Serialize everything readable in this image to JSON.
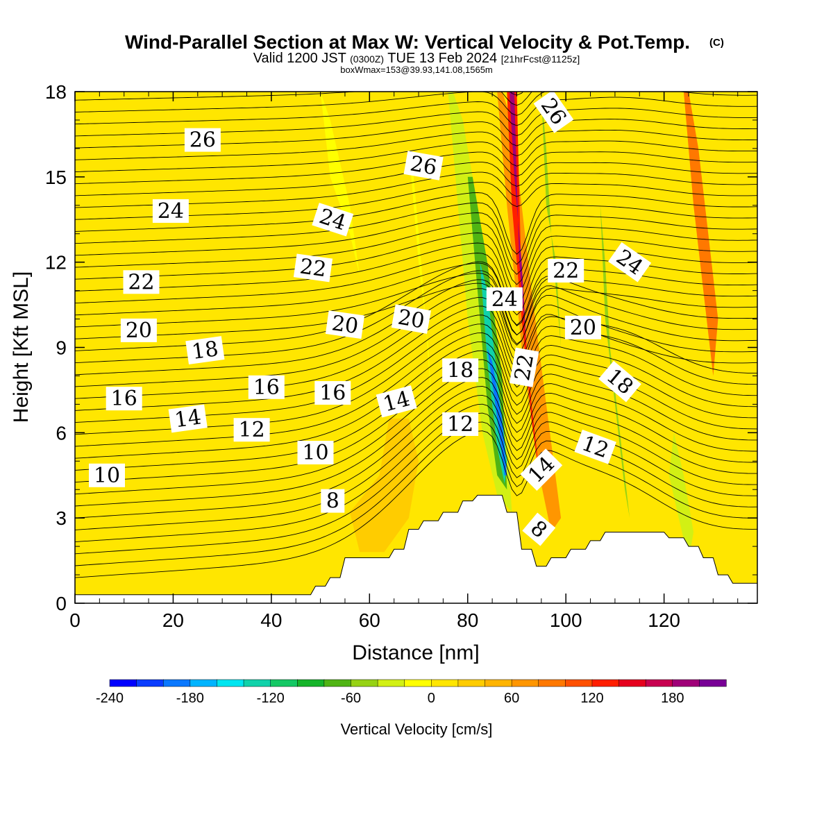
{
  "header": {
    "title": "Wind-Parallel Section at Max W: Vertical Velocity & Pot.Temp.",
    "copyright": "(C)",
    "valid_main_a": "Valid 1200 JST",
    "valid_utc": "(0300Z)",
    "valid_main_b": "TUE 13 Feb 2024",
    "forecast": "[21hrFcst@1125z]",
    "box": "boxWmax=153@39.93,141.08,1565m"
  },
  "chart_data": {
    "type": "heatmap",
    "title": "Wind-Parallel Section at Max W: Vertical Velocity & Pot.Temp.",
    "xlabel": "Distance [nm]",
    "ylabel": "Height [Kft MSL]",
    "xlim": [
      0,
      139
    ],
    "ylim": [
      0,
      18
    ],
    "x_ticks": [
      0,
      20,
      40,
      60,
      80,
      100,
      120
    ],
    "y_ticks": [
      0,
      3,
      6,
      9,
      12,
      15,
      18
    ],
    "colorbar": {
      "label": "Vertical Velocity [cm/s]",
      "min": -240,
      "max": 220,
      "step": 20,
      "ticks": [
        -240,
        -180,
        -120,
        -60,
        0,
        60,
        120,
        180
      ],
      "colors": [
        "#0000ff",
        "#0a3cff",
        "#0a78ff",
        "#00b4ff",
        "#00e6f0",
        "#10d2aa",
        "#14c864",
        "#16b42a",
        "#50b414",
        "#96d214",
        "#d2f014",
        "#ffff00",
        "#ffe600",
        "#ffcc00",
        "#ffb400",
        "#ff9600",
        "#ff7800",
        "#ff5000",
        "#ff1e00",
        "#e6001e",
        "#c80050",
        "#a00078",
        "#780096"
      ]
    },
    "terrain": {
      "x": [
        0,
        48,
        49,
        51,
        52,
        54,
        55,
        57,
        64,
        65,
        67,
        68,
        70,
        71,
        74,
        75,
        78,
        79,
        81,
        82,
        84,
        85,
        87,
        88,
        90,
        91,
        93,
        94,
        96,
        97,
        100,
        101,
        104,
        105,
        107,
        108,
        112,
        113,
        120,
        121,
        124,
        125,
        127,
        128,
        130,
        131,
        133,
        134,
        139
      ],
      "y": [
        0.3,
        0.3,
        0.6,
        0.6,
        0.9,
        0.9,
        1.6,
        1.6,
        1.6,
        1.9,
        1.9,
        2.6,
        2.6,
        2.9,
        2.9,
        3.2,
        3.2,
        3.6,
        3.6,
        3.8,
        3.8,
        3.8,
        3.8,
        3.2,
        3.2,
        1.9,
        1.9,
        1.3,
        1.3,
        1.6,
        1.6,
        1.9,
        1.9,
        2.2,
        2.2,
        2.5,
        2.5,
        2.5,
        2.5,
        2.3,
        2.3,
        2.0,
        2.0,
        1.6,
        1.6,
        1.0,
        1.0,
        0.7,
        0.7
      ]
    },
    "velocity_regions": [
      {
        "x": [
          62,
          56,
          58,
          63,
          68,
          70,
          68,
          64
        ],
        "y": [
          4.5,
          3.2,
          1.8,
          1.8,
          3.0,
          5.0,
          6.5,
          6.5
        ],
        "value": 30
      },
      {
        "x": [
          50,
          52,
          56,
          58,
          56,
          52
        ],
        "y": [
          18,
          15,
          13,
          11.5,
          14,
          17
        ],
        "value": -20
      },
      {
        "x": [
          68,
          70,
          72,
          73,
          71,
          69
        ],
        "y": [
          16,
          12,
          9,
          6,
          11,
          15
        ],
        "value": -20
      },
      {
        "x": [
          76,
          78,
          80,
          83,
          86,
          89,
          88,
          85,
          82,
          79,
          77
        ],
        "y": [
          18,
          14,
          10,
          6,
          3.8,
          3.2,
          6,
          10,
          14,
          17,
          18
        ],
        "value": -40
      },
      {
        "x": [
          80,
          82,
          84,
          86,
          88,
          87,
          84,
          81
        ],
        "y": [
          15,
          11,
          7,
          4.5,
          4,
          8,
          12,
          15
        ],
        "value": -80
      },
      {
        "x": [
          82.5,
          84,
          86,
          87.5,
          88,
          86,
          84
        ],
        "y": [
          12,
          8.5,
          5.5,
          4.2,
          5,
          8,
          11
        ],
        "value": -140
      },
      {
        "x": [
          84,
          86,
          87.5,
          88,
          87,
          85
        ],
        "y": [
          9,
          6.5,
          4.5,
          4.5,
          6.5,
          8.5
        ],
        "value": -200
      },
      {
        "x": [
          86,
          88,
          91,
          94,
          97,
          99,
          96,
          93,
          91,
          89,
          87
        ],
        "y": [
          18,
          14,
          9,
          5,
          2.5,
          3,
          7,
          11,
          14,
          17,
          18
        ],
        "value": 60
      },
      {
        "x": [
          88,
          89,
          91,
          93,
          95,
          93,
          91,
          90
        ],
        "y": [
          18,
          14,
          10,
          6.5,
          4,
          7,
          11,
          18
        ],
        "value": 120
      },
      {
        "x": [
          88.5,
          89.5,
          91,
          92,
          90.5,
          89.5
        ],
        "y": [
          18,
          15,
          12,
          9,
          12,
          18
        ],
        "value": 180
      },
      {
        "x": [
          95,
          96,
          98,
          99,
          97,
          96
        ],
        "y": [
          18,
          14,
          12,
          9,
          13,
          16
        ],
        "value": -60
      },
      {
        "x": [
          107,
          108,
          110,
          112,
          113,
          111,
          109,
          108
        ],
        "y": [
          14,
          10,
          7,
          4,
          3,
          6,
          9,
          12
        ],
        "value": -60
      },
      {
        "x": [
          121,
          123,
          125,
          126,
          124,
          122
        ],
        "y": [
          4.5,
          3,
          1.5,
          2.5,
          4.5,
          6
        ],
        "value": -40
      },
      {
        "x": [
          124,
          126,
          128,
          130,
          131,
          129,
          127,
          125
        ],
        "y": [
          18,
          14,
          11,
          8,
          10,
          13,
          16,
          18
        ],
        "value": 80
      }
    ],
    "contour_labels": [
      {
        "value": "10",
        "x": 6.5,
        "y": 4.5,
        "angle": 0
      },
      {
        "value": "16",
        "x": 10,
        "y": 7.2,
        "angle": 0
      },
      {
        "value": "14",
        "x": 23,
        "y": 6.5,
        "angle": -8
      },
      {
        "value": "12",
        "x": 36,
        "y": 6.1,
        "angle": 0
      },
      {
        "value": "10",
        "x": 49,
        "y": 5.3,
        "angle": 0
      },
      {
        "value": "8",
        "x": 52.5,
        "y": 3.6,
        "angle": 0
      },
      {
        "value": "20",
        "x": 13,
        "y": 9.6,
        "angle": 0
      },
      {
        "value": "22",
        "x": 13.5,
        "y": 11.3,
        "angle": 0
      },
      {
        "value": "24",
        "x": 19.5,
        "y": 13.8,
        "angle": 0
      },
      {
        "value": "26",
        "x": 26,
        "y": 16.3,
        "angle": 0
      },
      {
        "value": "18",
        "x": 26.5,
        "y": 8.9,
        "angle": -8
      },
      {
        "value": "16",
        "x": 39,
        "y": 7.6,
        "angle": 0
      },
      {
        "value": "16",
        "x": 52.5,
        "y": 7.4,
        "angle": 0
      },
      {
        "value": "14",
        "x": 65.5,
        "y": 7.1,
        "angle": -15
      },
      {
        "value": "12",
        "x": 78.5,
        "y": 6.3,
        "angle": 0
      },
      {
        "value": "18",
        "x": 78.5,
        "y": 8.2,
        "angle": 0
      },
      {
        "value": "20",
        "x": 55,
        "y": 9.8,
        "angle": 8
      },
      {
        "value": "20",
        "x": 68.5,
        "y": 10.0,
        "angle": 10
      },
      {
        "value": "22",
        "x": 48.5,
        "y": 11.8,
        "angle": 8
      },
      {
        "value": "24",
        "x": 52.5,
        "y": 13.5,
        "angle": 18
      },
      {
        "value": "26",
        "x": 71,
        "y": 15.4,
        "angle": 10
      },
      {
        "value": "24",
        "x": 87.5,
        "y": 10.7,
        "angle": 0
      },
      {
        "value": "22",
        "x": 91.5,
        "y": 8.3,
        "angle": -80
      },
      {
        "value": "14",
        "x": 95,
        "y": 4.7,
        "angle": -45
      },
      {
        "value": "8",
        "x": 94.5,
        "y": 2.6,
        "angle": 40
      },
      {
        "value": "26",
        "x": 97.5,
        "y": 17.3,
        "angle": 55
      },
      {
        "value": "22",
        "x": 100,
        "y": 11.7,
        "angle": 0
      },
      {
        "value": "20",
        "x": 103.5,
        "y": 9.7,
        "angle": 0
      },
      {
        "value": "24",
        "x": 113,
        "y": 12,
        "angle": 35
      },
      {
        "value": "18",
        "x": 111,
        "y": 7.8,
        "angle": 40
      },
      {
        "value": "12",
        "x": 106,
        "y": 5.5,
        "angle": 20
      }
    ]
  }
}
